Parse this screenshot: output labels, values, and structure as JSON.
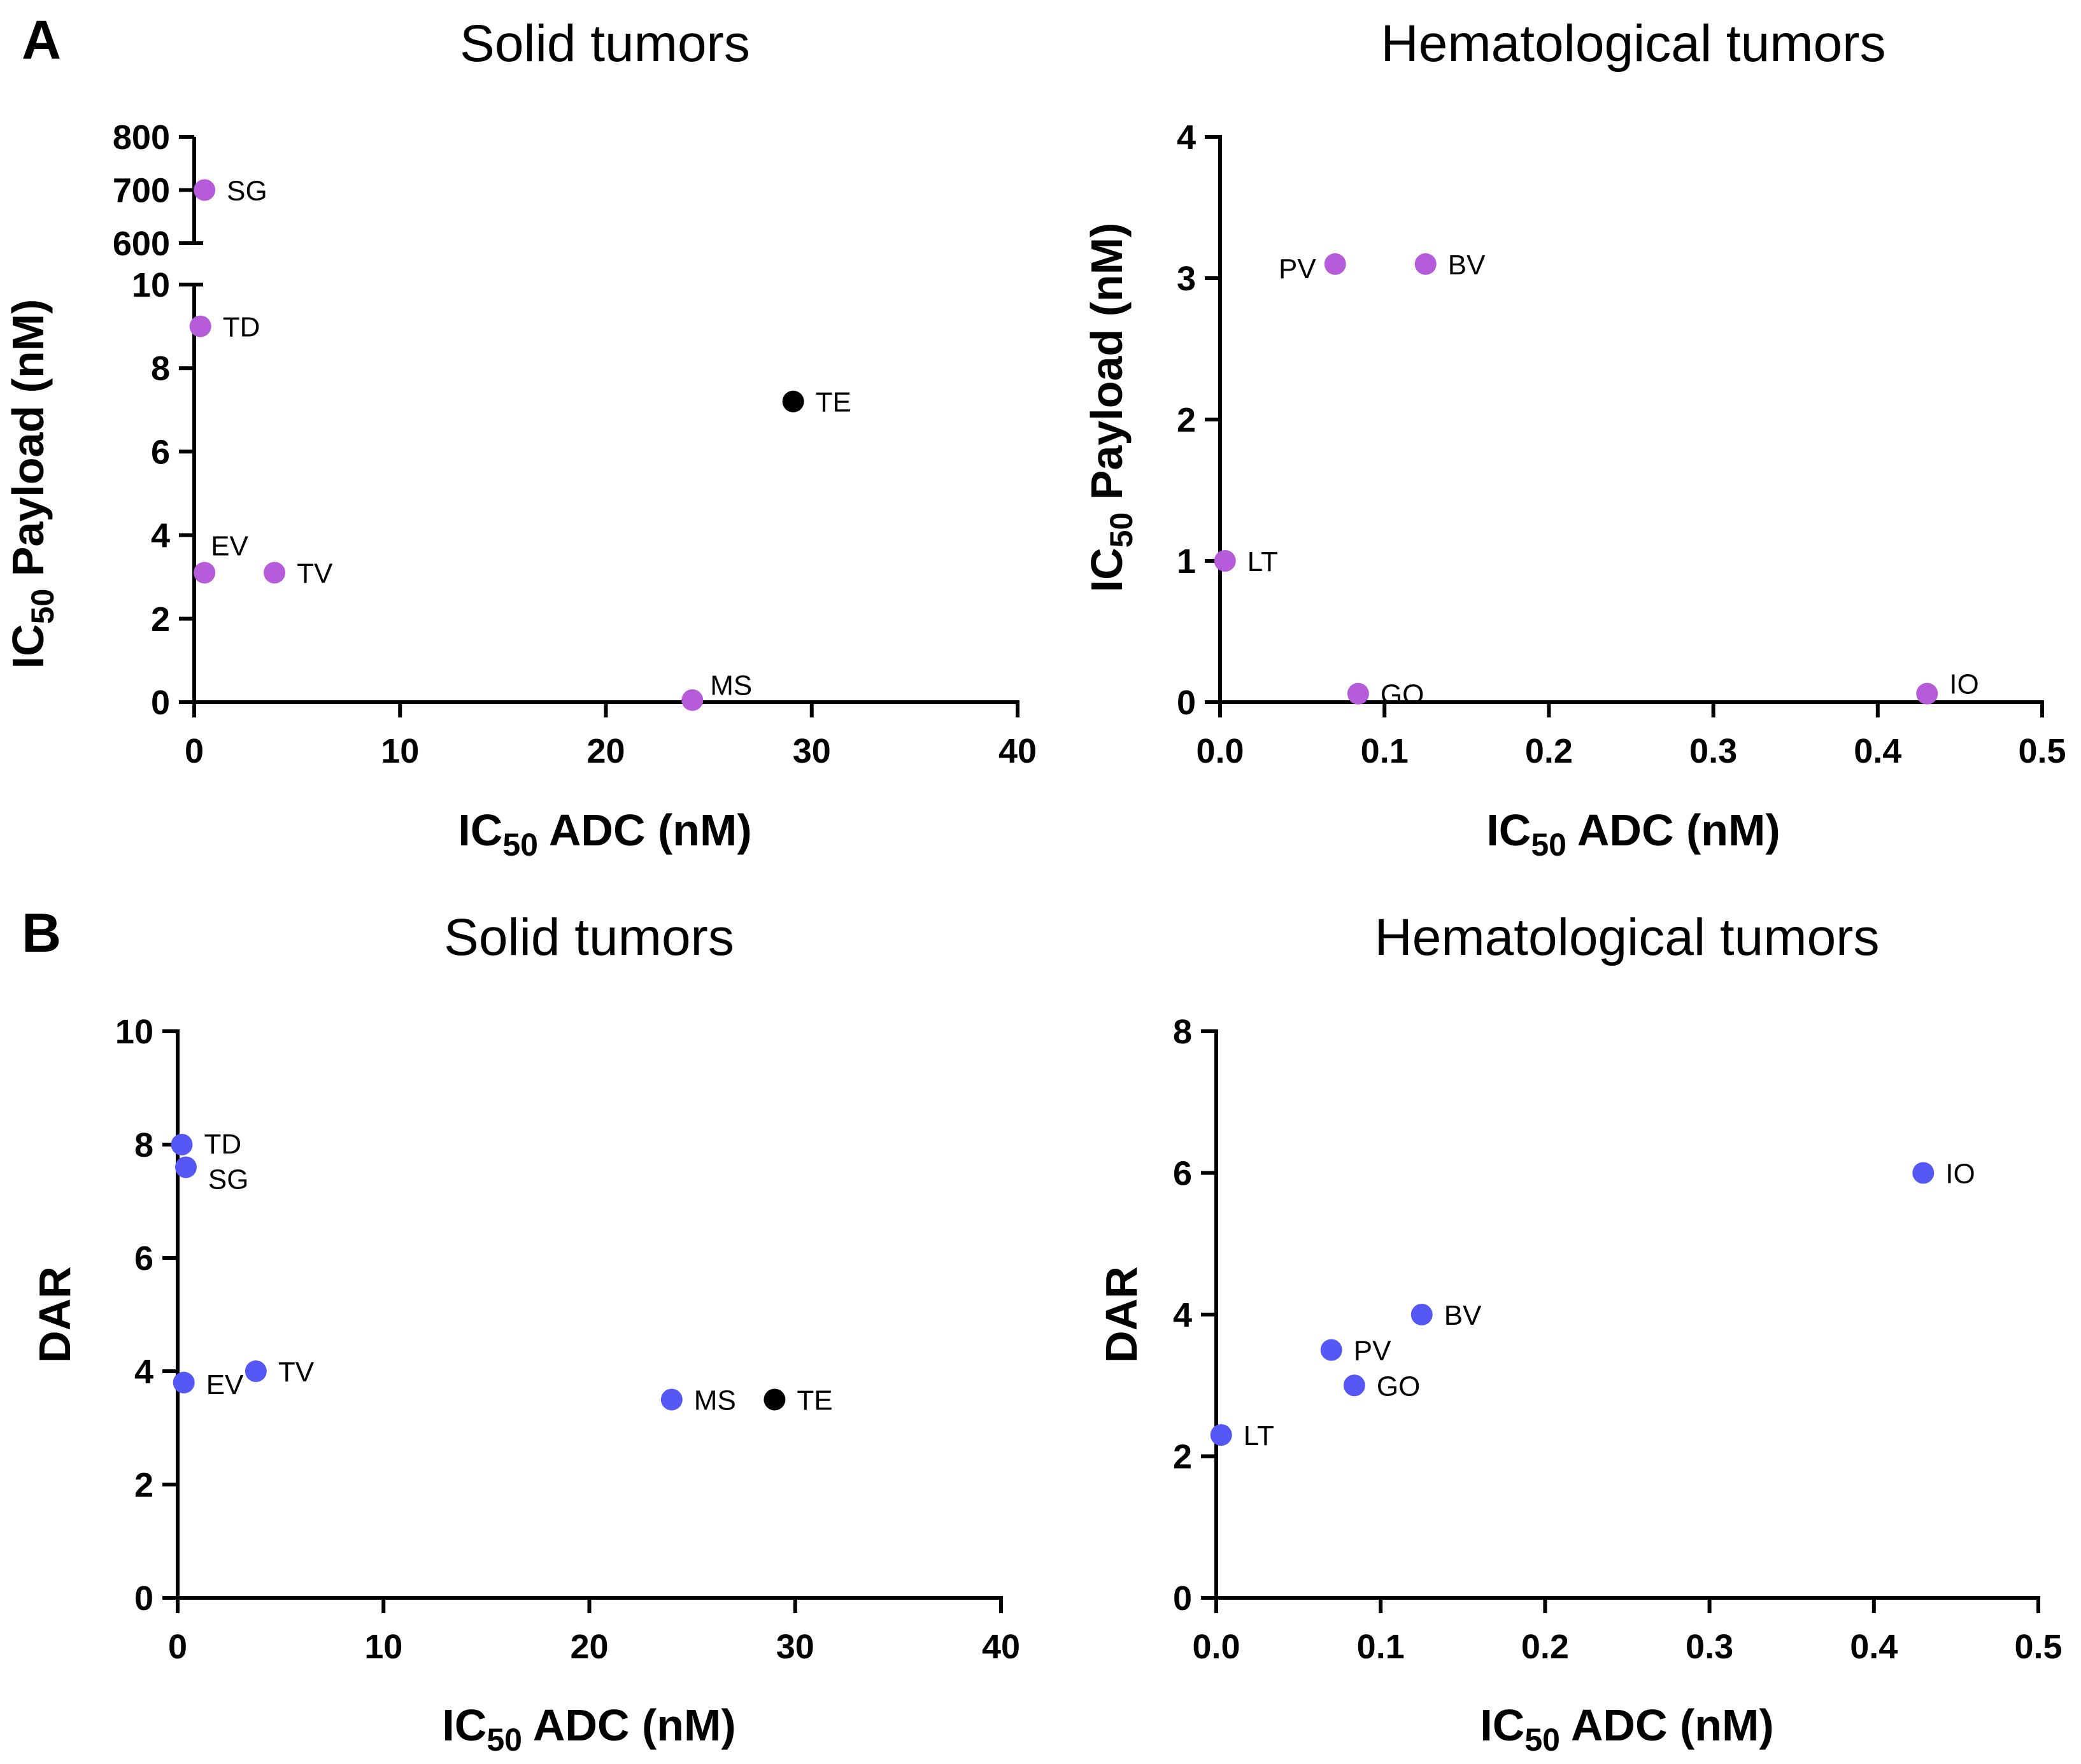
{
  "figure": {
    "panel_labels": [
      "A",
      "B"
    ],
    "colors": {
      "payload_point": "#b65bd9",
      "dar_point": "#5558f5",
      "highlight_point": "#000000",
      "axis": "#000000"
    }
  },
  "chart_data": [
    {
      "type": "scatter",
      "panel": "A",
      "title": "Solid tumors",
      "xlabel": {
        "main": "IC",
        "sub": "50",
        "rest": " ADC (nM)"
      },
      "ylabel": {
        "main": "IC",
        "sub": "50",
        "rest": " Payload (nM)"
      },
      "xlim": [
        0,
        40
      ],
      "xticks": [
        "0",
        "10",
        "20",
        "30",
        "40"
      ],
      "y_segments": [
        {
          "range": [
            0,
            10
          ],
          "ticks": [
            "0",
            "2",
            "4",
            "6",
            "8",
            "10"
          ]
        },
        {
          "range": [
            600,
            800
          ],
          "ticks": [
            "600",
            "700",
            "800"
          ]
        }
      ],
      "points": [
        {
          "label": "SG",
          "x": 0.5,
          "y": 700,
          "color": "#b65bd9"
        },
        {
          "label": "TD",
          "x": 0.3,
          "y": 9.0,
          "color": "#b65bd9"
        },
        {
          "label": "TE",
          "x": 29.1,
          "y": 7.2,
          "color": "#000000"
        },
        {
          "label": "EV",
          "x": 0.5,
          "y": 3.1,
          "color": "#b65bd9"
        },
        {
          "label": "TV",
          "x": 3.9,
          "y": 3.1,
          "color": "#b65bd9"
        },
        {
          "label": "MS",
          "x": 24.2,
          "y": 0.05,
          "color": "#b65bd9"
        }
      ]
    },
    {
      "type": "scatter",
      "panel": "A",
      "title": "Hematological tumors",
      "xlabel": {
        "main": "IC",
        "sub": "50",
        "rest": " ADC  (nM)"
      },
      "ylabel": {
        "main": "IC",
        "sub": "50",
        "rest": " Payload (nM)"
      },
      "xlim": [
        0,
        0.5
      ],
      "ylim": [
        0,
        4
      ],
      "xticks": [
        "0.0",
        "0.1",
        "0.2",
        "0.3",
        "0.4",
        "0.5"
      ],
      "yticks": [
        "0",
        "1",
        "2",
        "3",
        "4"
      ],
      "points": [
        {
          "label": "PV",
          "x": 0.07,
          "y": 3.1,
          "color": "#b65bd9"
        },
        {
          "label": "BV",
          "x": 0.125,
          "y": 3.1,
          "color": "#b65bd9"
        },
        {
          "label": "LT",
          "x": 0.003,
          "y": 1.0,
          "color": "#b65bd9"
        },
        {
          "label": "GO",
          "x": 0.084,
          "y": 0.06,
          "color": "#b65bd9"
        },
        {
          "label": "IO",
          "x": 0.43,
          "y": 0.06,
          "color": "#b65bd9"
        }
      ]
    },
    {
      "type": "scatter",
      "panel": "B",
      "title": "Solid tumors",
      "xlabel": {
        "main": "IC",
        "sub": "50",
        "rest": " ADC (nM)"
      },
      "ylabel": {
        "main": "DAR",
        "sub": "",
        "rest": ""
      },
      "xlim": [
        0,
        40
      ],
      "ylim": [
        0,
        10
      ],
      "xticks": [
        "0",
        "10",
        "20",
        "30",
        "40"
      ],
      "yticks": [
        "0",
        "2",
        "4",
        "6",
        "8",
        "10"
      ],
      "points": [
        {
          "label": "TD",
          "x": 0.2,
          "y": 8.0,
          "color": "#5558f5"
        },
        {
          "label": "SG",
          "x": 0.4,
          "y": 7.6,
          "color": "#5558f5"
        },
        {
          "label": "EV",
          "x": 0.3,
          "y": 3.8,
          "color": "#5558f5"
        },
        {
          "label": "TV",
          "x": 3.8,
          "y": 4.0,
          "color": "#5558f5"
        },
        {
          "label": "MS",
          "x": 24.0,
          "y": 3.5,
          "color": "#5558f5"
        },
        {
          "label": "TE",
          "x": 29.0,
          "y": 3.5,
          "color": "#000000"
        }
      ]
    },
    {
      "type": "scatter",
      "panel": "B",
      "title": "Hematological tumors",
      "xlabel": {
        "main": "IC",
        "sub": "50",
        "rest": " ADC (nM)"
      },
      "ylabel": {
        "main": "DAR",
        "sub": "",
        "rest": ""
      },
      "xlim": [
        0,
        0.5
      ],
      "ylim": [
        0,
        8
      ],
      "xticks": [
        "0.0",
        "0.1",
        "0.2",
        "0.3",
        "0.4",
        "0.5"
      ],
      "yticks": [
        "0",
        "2",
        "4",
        "6",
        "8"
      ],
      "points": [
        {
          "label": "IO",
          "x": 0.43,
          "y": 6.0,
          "color": "#5558f5"
        },
        {
          "label": "BV",
          "x": 0.125,
          "y": 4.0,
          "color": "#5558f5"
        },
        {
          "label": "PV",
          "x": 0.07,
          "y": 3.5,
          "color": "#5558f5"
        },
        {
          "label": "GO",
          "x": 0.084,
          "y": 3.0,
          "color": "#5558f5"
        },
        {
          "label": "LT",
          "x": 0.003,
          "y": 2.3,
          "color": "#5558f5"
        }
      ]
    }
  ]
}
